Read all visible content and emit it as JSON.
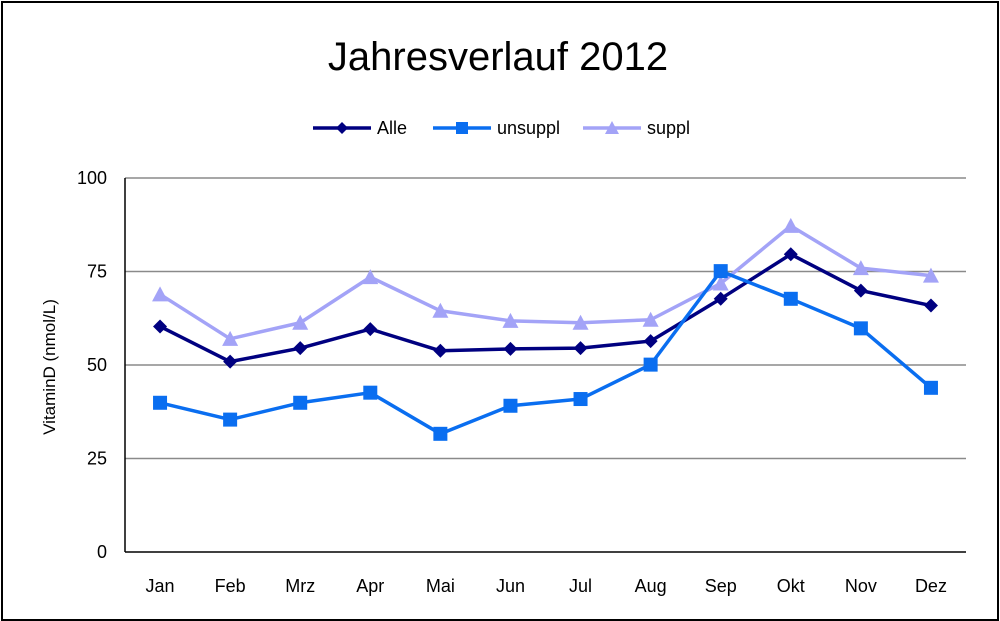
{
  "chart_data": {
    "type": "line",
    "title": "Jahresverlauf 2012",
    "xlabel": "",
    "ylabel": "VitaminD (nmol/L)",
    "ylim": [
      0,
      100
    ],
    "yticks": [
      0,
      25,
      50,
      75,
      100
    ],
    "grid": true,
    "legend": "top",
    "categories": [
      "Jan",
      "Feb",
      "Mrz",
      "Apr",
      "Mai",
      "Jun",
      "Jul",
      "Aug",
      "Sep",
      "Okt",
      "Nov",
      "Dez"
    ],
    "series": [
      {
        "name": "Alle",
        "marker": "diamond",
        "color": "#000080",
        "values": [
          60.3,
          50.9,
          54.5,
          59.6,
          53.8,
          54.3,
          54.5,
          56.4,
          67.7,
          79.6,
          69.9,
          65.9
        ]
      },
      {
        "name": "unsuppl",
        "marker": "square",
        "color": "#0A6EF0",
        "values": [
          39.9,
          35.4,
          39.9,
          42.6,
          31.6,
          39.1,
          40.9,
          50.1,
          75.1,
          67.7,
          59.8,
          43.9
        ]
      },
      {
        "name": "suppl",
        "marker": "triangle",
        "color": "#A3A3F7",
        "values": [
          68.9,
          57.0,
          61.3,
          73.5,
          64.5,
          61.8,
          61.3,
          62.1,
          71.8,
          87.2,
          75.9,
          73.9
        ]
      }
    ]
  }
}
